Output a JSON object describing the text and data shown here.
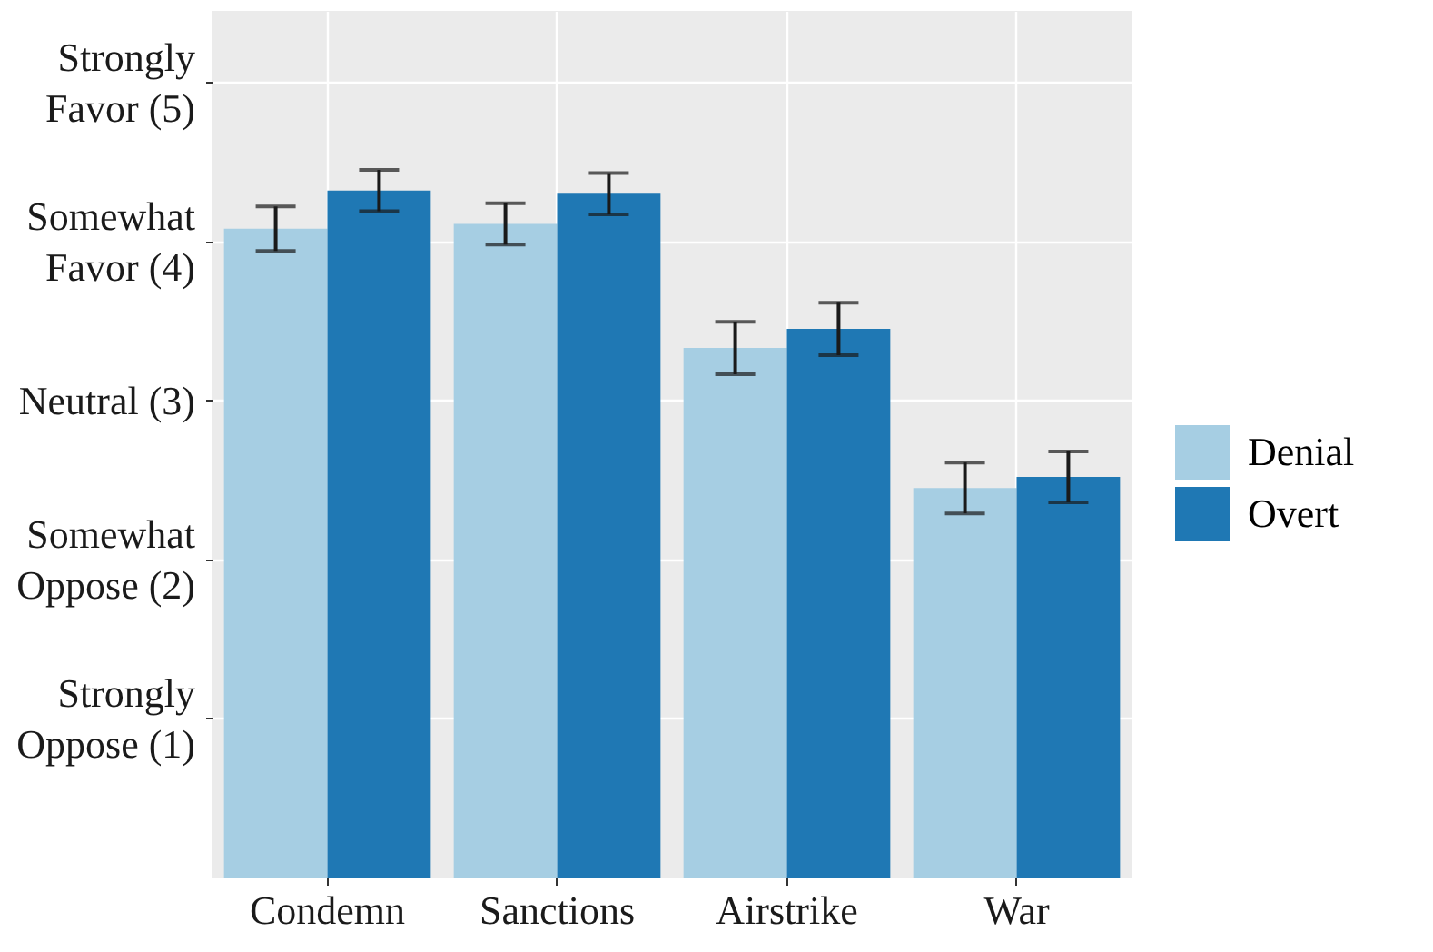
{
  "chart_data": {
    "type": "bar",
    "categories": [
      "Condemn",
      "Sanctions",
      "Airstrike",
      "War"
    ],
    "series": [
      {
        "name": "Denial",
        "color": "#a6cee3",
        "values": [
          4.08,
          4.11,
          3.33,
          2.45
        ],
        "errors": [
          0.14,
          0.13,
          0.165,
          0.16
        ]
      },
      {
        "name": "Overt",
        "color": "#1f78b4",
        "values": [
          4.32,
          4.3,
          3.45,
          2.52
        ],
        "errors": [
          0.13,
          0.13,
          0.165,
          0.16
        ]
      }
    ],
    "ylim": [
      0,
      5.45
    ],
    "yticks": [
      {
        "value": 1,
        "label": "Strongly\nOppose (1)"
      },
      {
        "value": 2,
        "label": "Somewhat\nOppose (2)"
      },
      {
        "value": 3,
        "label": "Neutral (3)"
      },
      {
        "value": 4,
        "label": "Somewhat\nFavor (4)"
      },
      {
        "value": 5,
        "label": "Strongly\nFavor (5)"
      }
    ],
    "grid": true,
    "legend": "right"
  }
}
